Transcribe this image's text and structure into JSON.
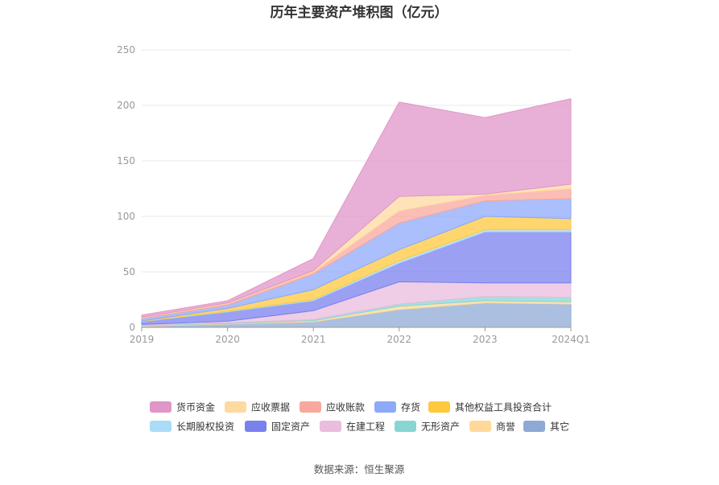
{
  "chart_data": {
    "type": "area",
    "stacked": true,
    "title": "历年主要资产堆积图（亿元）",
    "categories": [
      "2019",
      "2020",
      "2021",
      "2022",
      "2023",
      "2024Q1"
    ],
    "ylim": [
      0,
      250
    ],
    "yticks": [
      0,
      50,
      100,
      150,
      200,
      250
    ],
    "grid": true,
    "legend_position": "bottom",
    "source": "数据来源：恒生聚源",
    "series": [
      {
        "name": "其它",
        "color": "#8fa9d6",
        "values": [
          1,
          3,
          5,
          16,
          22,
          21
        ]
      },
      {
        "name": "商誉",
        "color": "#ffd99a",
        "values": [
          0.5,
          0.5,
          1,
          3,
          2,
          2
        ]
      },
      {
        "name": "无形资产",
        "color": "#88d6d4",
        "values": [
          0.5,
          0.7,
          1,
          2,
          4,
          4
        ]
      },
      {
        "name": "在建工程",
        "color": "#eabcdd",
        "values": [
          0.7,
          1.3,
          8,
          20,
          12,
          13
        ]
      },
      {
        "name": "固定资产",
        "color": "#7a80ee",
        "values": [
          2.5,
          8.5,
          9,
          17,
          46,
          46
        ]
      },
      {
        "name": "长期股权投资",
        "color": "#a9dcf7",
        "values": [
          0.3,
          0.5,
          1,
          2,
          2,
          2
        ]
      },
      {
        "name": "其他权益工具投资合计",
        "color": "#ffc83d",
        "values": [
          0.3,
          2.5,
          9,
          10,
          12,
          10
        ]
      },
      {
        "name": "存货",
        "color": "#8ea9f9",
        "values": [
          2.2,
          3,
          14,
          24,
          14,
          18
        ]
      },
      {
        "name": "应收账款",
        "color": "#faa89d",
        "values": [
          0.5,
          1.5,
          2,
          11,
          5,
          9
        ]
      },
      {
        "name": "应收票据",
        "color": "#ffdaa0",
        "values": [
          0.5,
          0.5,
          1,
          13,
          1,
          4
        ]
      },
      {
        "name": "货币资金",
        "color": "#e096c8",
        "values": [
          2,
          2,
          11,
          85,
          69,
          77
        ]
      }
    ]
  }
}
